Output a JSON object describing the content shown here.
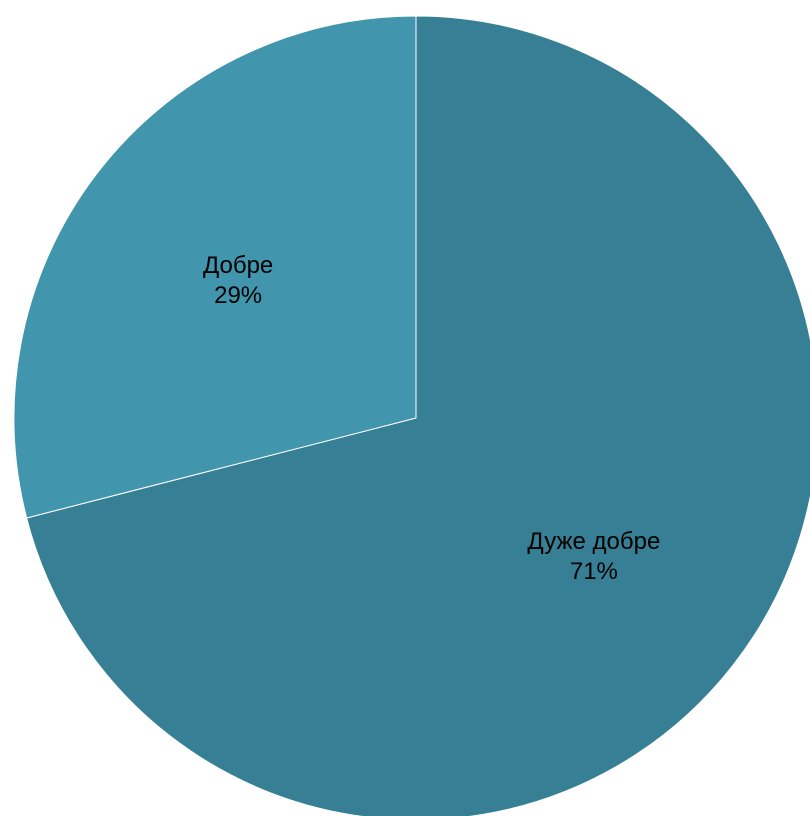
{
  "chart_data": {
    "type": "pie",
    "title": "",
    "legend": "none",
    "start_angle_deg": 0,
    "direction": "clockwise",
    "slices": [
      {
        "label": "Дуже добре",
        "value": 71,
        "percent_label": "71%",
        "color": "#377f94"
      },
      {
        "label": "Добре",
        "value": 29,
        "percent_label": "29%",
        "color": "#4196ae"
      }
    ]
  }
}
